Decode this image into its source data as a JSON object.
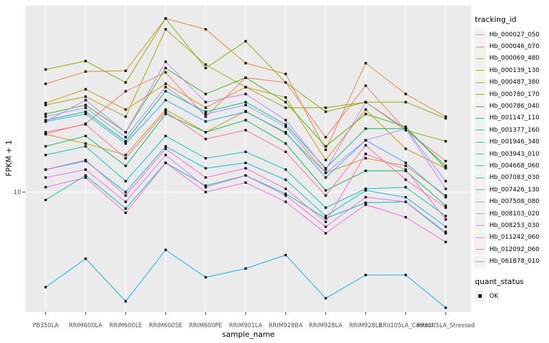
{
  "chart_data": {
    "type": "line",
    "title": "",
    "xlabel": "sample_name",
    "ylabel": "FPKM + 1",
    "yscale": "log10",
    "y_tick_labels": [
      "10"
    ],
    "y_major_gridline_value": 10,
    "ylim_approx": [
      2.2,
      95
    ],
    "grid": "on",
    "panel_bg": "#EBEBEB",
    "grid_color": "#FFFFFF",
    "tick_label_color": "#4D4D4D",
    "point_shape": "filled-square",
    "point_color": "#000000",
    "legend_position": "right",
    "categories": [
      "PB350LA",
      "RRIM600LA",
      "RRIM600LE",
      "RRIM600SE",
      "RRIM600PE",
      "RRIM901LA",
      "RRIM928BA",
      "RRIM928LA",
      "RRIM928LE",
      "RRII105LA_Control",
      "RRII105LA_Stressed"
    ],
    "series": [
      {
        "name": "Hb_000027_050",
        "color": "#F8766D",
        "values": [
          20.1,
          22.7,
          33.5,
          42.0,
          24.7,
          39.4,
          37.2,
          19.3,
          35.8,
          21.0,
          14.5
        ]
      },
      {
        "name": "Hb_000046_070",
        "color": "#E88526",
        "values": [
          36.6,
          42.4,
          42.8,
          80.1,
          70.4,
          46.9,
          41.2,
          16.6,
          46.9,
          32.4,
          24.7
        ]
      },
      {
        "name": "Hb_000069_480",
        "color": "#D89000",
        "values": [
          29.1,
          34.3,
          26.9,
          36.6,
          27.5,
          35.2,
          31.1,
          14.7,
          26.9,
          16.8,
          13.3
        ]
      },
      {
        "name": "Hb_000139_130",
        "color": "#C49A00",
        "values": [
          20.0,
          17.9,
          15.6,
          26.9,
          20.5,
          26.4,
          20.2,
          12.6,
          15.0,
          13.7,
          9.6
        ]
      },
      {
        "name": "Hb_000487_380",
        "color": "#A3A500",
        "values": [
          28.4,
          31.4,
          24.7,
          70.4,
          46.1,
          35.2,
          27.5,
          27.5,
          29.4,
          21.0,
          18.4
        ]
      },
      {
        "name": "Hb_000780_170",
        "color": "#7CAE00",
        "values": [
          43.5,
          48.1,
          37.2,
          80.1,
          44.2,
          61.0,
          37.2,
          26.2,
          29.4,
          29.4,
          24.2
        ]
      },
      {
        "name": "Hb_000786_040",
        "color": "#39B600",
        "values": [
          25.5,
          28.4,
          20.5,
          44.2,
          32.4,
          39.4,
          29.4,
          17.3,
          25.5,
          21.9,
          13.3
        ]
      },
      {
        "name": "Hb_001147_110",
        "color": "#00BB4E",
        "values": [
          17.3,
          19.6,
          13.7,
          25.5,
          20.5,
          23.7,
          17.9,
          10.2,
          12.9,
          12.9,
          8.5
        ]
      },
      {
        "name": "Hb_001377_160",
        "color": "#00BF7D",
        "values": [
          23.7,
          26.2,
          18.4,
          33.5,
          26.2,
          29.4,
          22.5,
          13.3,
          21.4,
          21.4,
          13.7
        ]
      },
      {
        "name": "Hb_001946_340",
        "color": "#00C1A3",
        "values": [
          9.1,
          12.2,
          8.2,
          14.2,
          10.8,
          12.2,
          9.8,
          7.3,
          8.8,
          8.9,
          6.1
        ]
      },
      {
        "name": "Hb_003943_010",
        "color": "#00BFC4",
        "values": [
          15.6,
          17.3,
          11.4,
          19.6,
          15.0,
          16.2,
          13.1,
          8.3,
          10.4,
          10.6,
          7.5
        ]
      },
      {
        "name": "Hb_004668_060",
        "color": "#00BAE0",
        "values": [
          13.1,
          14.5,
          10.0,
          17.3,
          13.3,
          14.2,
          11.6,
          7.5,
          10.2,
          9.4,
          6.6
        ]
      },
      {
        "name": "Hb_007083_030",
        "color": "#00B0F6",
        "values": [
          3.2,
          4.5,
          2.7,
          5.0,
          3.6,
          4.0,
          4.7,
          2.8,
          3.7,
          3.7,
          2.5
        ]
      },
      {
        "name": "Hb_007426_130",
        "color": "#35A2FF",
        "values": [
          23.3,
          25.5,
          17.9,
          30.1,
          23.3,
          26.2,
          20.5,
          11.9,
          18.6,
          14.2,
          9.4
        ]
      },
      {
        "name": "Hb_007508_080",
        "color": "#9590FF",
        "values": [
          24.7,
          27.5,
          19.3,
          35.2,
          25.5,
          28.4,
          21.9,
          12.6,
          18.6,
          21.4,
          11.4
        ]
      },
      {
        "name": "Hb_008103_020",
        "color": "#C77CFF",
        "values": [
          23.3,
          30.1,
          20.5,
          47.7,
          29.4,
          32.4,
          23.7,
          13.1,
          29.4,
          21.4,
          10.4
        ]
      },
      {
        "name": "Hb_008253_030",
        "color": "#E76BF3",
        "values": [
          11.9,
          13.1,
          8.9,
          15.6,
          10.6,
          12.2,
          9.6,
          6.6,
          9.4,
          8.9,
          6.2
        ]
      },
      {
        "name": "Hb_011242_060",
        "color": "#FA62DB",
        "values": [
          10.6,
          11.9,
          7.8,
          14.2,
          10.0,
          11.2,
          8.9,
          6.1,
          8.6,
          7.4,
          5.5
        ]
      },
      {
        "name": "Hb_012092_060",
        "color": "#FF61CC",
        "values": [
          13.1,
          14.7,
          9.6,
          16.8,
          11.9,
          13.3,
          10.4,
          7.0,
          15.8,
          13.1,
          7.2
        ]
      },
      {
        "name": "Hb_061878_010",
        "color": "#FF6A98",
        "values": [
          20.5,
          22.5,
          15.0,
          26.2,
          18.9,
          21.0,
          16.2,
          9.6,
          17.5,
          11.6,
          8.3
        ]
      }
    ],
    "legend": {
      "tracking_title": "tracking_id",
      "quant_title": "quant_status",
      "quant_items": [
        {
          "label": "OK"
        }
      ]
    }
  }
}
